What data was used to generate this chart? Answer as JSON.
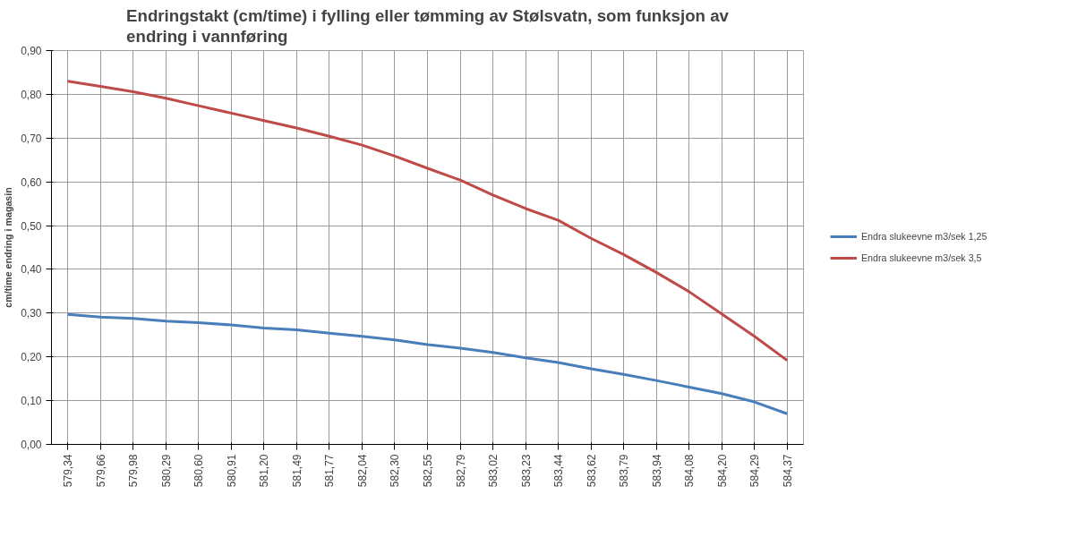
{
  "chart_data": {
    "type": "line",
    "title": "Endringstakt (cm/time) i fylling eller tømming av Stølsvatn, som funksjon av endring i vannføring",
    "ylabel": "cm/time endring i magasin",
    "categories": [
      "579,34",
      "579,66",
      "579,98",
      "580,29",
      "580,60",
      "580,91",
      "581,20",
      "581,49",
      "581,77",
      "582,04",
      "582,30",
      "582,55",
      "582,79",
      "583,02",
      "583,23",
      "583,44",
      "583,62",
      "583,79",
      "583,94",
      "584,08",
      "584,20",
      "584,29",
      "584,37"
    ],
    "series": [
      {
        "name": "Endra slukeevne m3/sek 1,25",
        "color": "#4a7ebb",
        "values": [
          0.297,
          0.291,
          0.288,
          0.282,
          0.278,
          0.273,
          0.266,
          0.262,
          0.254,
          0.247,
          0.239,
          0.228,
          0.22,
          0.21,
          0.198,
          0.187,
          0.173,
          0.16,
          0.146,
          0.131,
          0.116,
          0.097,
          0.07
        ]
      },
      {
        "name": "Endra slukeevne m3/sek 3,5",
        "color": "#be4b48",
        "values": [
          0.83,
          0.818,
          0.806,
          0.791,
          0.774,
          0.757,
          0.74,
          0.723,
          0.704,
          0.684,
          0.659,
          0.631,
          0.604,
          0.57,
          0.539,
          0.512,
          0.471,
          0.434,
          0.393,
          0.349,
          0.298,
          0.247,
          0.192
        ]
      }
    ],
    "ylim": [
      0,
      0.9
    ],
    "yticks": [
      {
        "value": 0,
        "label": "0,00"
      },
      {
        "value": 0.1,
        "label": "0,10"
      },
      {
        "value": 0.2,
        "label": "0,20"
      },
      {
        "value": 0.3,
        "label": "0,30"
      },
      {
        "value": 0.4,
        "label": "0,40"
      },
      {
        "value": 0.5,
        "label": "0,50"
      },
      {
        "value": 0.6,
        "label": "0,60"
      },
      {
        "value": 0.7,
        "label": "0,70"
      },
      {
        "value": 0.8,
        "label": "0,80"
      },
      {
        "value": 0.9,
        "label": "0,90"
      }
    ],
    "grid": true,
    "legend": "right",
    "marker": "none",
    "line_style": "solid"
  }
}
